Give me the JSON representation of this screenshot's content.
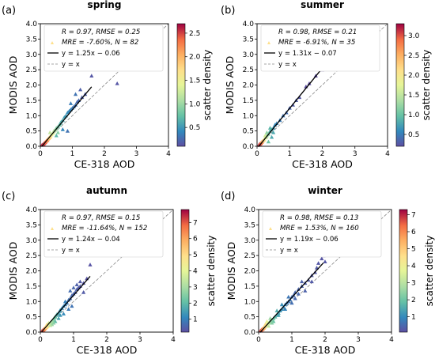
{
  "figure": {
    "ylabel": "MODIS AOD",
    "xlabel": "CE-318 AOD",
    "colorbar_label": "scatter density"
  },
  "chart_data": [
    {
      "type": "scatter",
      "panel": "(a)",
      "title": "spring",
      "xlabel": "CE-318 AOD",
      "ylabel": "MODIS AOD",
      "xlim": [
        0,
        4
      ],
      "ylim": [
        0,
        4
      ],
      "xticks": [
        "0",
        "1",
        "2",
        "3",
        "4"
      ],
      "yticks": [
        "0.0",
        "0.5",
        "1.0",
        "1.5",
        "2.0",
        "2.5",
        "3.0",
        "3.5",
        "4.0"
      ],
      "stats": {
        "line1": "R = 0.97, RMSE = 0.25",
        "line2": "MRE = -7.60%, N = 82"
      },
      "legend": {
        "fit": "y = 1.25x − 0.06",
        "identity": "y = x"
      },
      "fit": {
        "slope": 1.25,
        "intercept": -0.06,
        "x_range": [
          0.04,
          1.6
        ]
      },
      "colorbar": {
        "min": 0.1,
        "max": 2.7,
        "ticks": [
          "0.5",
          "1.0",
          "1.5",
          "2.0",
          "2.5"
        ],
        "tickvals": [
          0.5,
          1.0,
          1.5,
          2.0,
          2.5
        ]
      },
      "points": [
        [
          0.05,
          0.04,
          2.6
        ],
        [
          0.08,
          0.06,
          2.6
        ],
        [
          0.1,
          0.07,
          2.5
        ],
        [
          0.12,
          0.1,
          2.5
        ],
        [
          0.14,
          0.12,
          2.4
        ],
        [
          0.16,
          0.14,
          2.4
        ],
        [
          0.18,
          0.17,
          2.3
        ],
        [
          0.2,
          0.19,
          2.2
        ],
        [
          0.22,
          0.2,
          2.2
        ],
        [
          0.24,
          0.24,
          2.0
        ],
        [
          0.26,
          0.26,
          1.9
        ],
        [
          0.28,
          0.29,
          1.8
        ],
        [
          0.3,
          0.3,
          1.8
        ],
        [
          0.32,
          0.33,
          1.6
        ],
        [
          0.35,
          0.38,
          1.5
        ],
        [
          0.38,
          0.42,
          1.4
        ],
        [
          0.4,
          0.45,
          1.3
        ],
        [
          0.42,
          0.5,
          1.2
        ],
        [
          0.45,
          0.52,
          1.1
        ],
        [
          0.48,
          0.56,
          1.0
        ],
        [
          0.5,
          0.6,
          0.9
        ],
        [
          0.55,
          0.64,
          0.8
        ],
        [
          0.6,
          0.7,
          0.75
        ],
        [
          0.62,
          0.75,
          0.7
        ],
        [
          0.65,
          0.8,
          0.65
        ],
        [
          0.7,
          0.85,
          0.6
        ],
        [
          0.75,
          0.95,
          0.55
        ],
        [
          0.8,
          1.0,
          0.5
        ],
        [
          0.85,
          1.1,
          0.45
        ],
        [
          0.9,
          1.15,
          0.4
        ],
        [
          0.95,
          1.2,
          0.4
        ],
        [
          1.0,
          1.25,
          0.35
        ],
        [
          1.05,
          1.3,
          0.3
        ],
        [
          1.1,
          1.35,
          0.3
        ],
        [
          1.15,
          1.45,
          0.25
        ],
        [
          1.2,
          1.5,
          0.25
        ],
        [
          1.3,
          1.6,
          0.2
        ],
        [
          1.4,
          1.7,
          0.2
        ],
        [
          1.6,
          2.3,
          0.15
        ],
        [
          2.4,
          2.05,
          0.15
        ],
        [
          0.85,
          0.5,
          0.3
        ],
        [
          0.7,
          0.55,
          0.4
        ],
        [
          1.1,
          1.7,
          0.3
        ],
        [
          0.95,
          1.4,
          0.35
        ],
        [
          1.25,
          1.85,
          0.2
        ],
        [
          0.5,
          0.35,
          0.7
        ],
        [
          0.3,
          0.45,
          1.2
        ],
        [
          0.55,
          0.45,
          0.9
        ]
      ]
    },
    {
      "type": "scatter",
      "panel": "(b)",
      "title": "summer",
      "xlabel": "CE-318 AOD",
      "ylabel": "MODIS AOD",
      "xlim": [
        0,
        4
      ],
      "ylim": [
        0,
        4
      ],
      "xticks": [
        "0",
        "1",
        "2",
        "3",
        "4"
      ],
      "yticks": [
        "0.0",
        "0.5",
        "1.0",
        "1.5",
        "2.0",
        "2.5",
        "3.0",
        "3.5",
        "4.0"
      ],
      "stats": {
        "line1": "R = 0.98, RMSE = 0.21",
        "line2": "MRE = -6.91%, N = 35"
      },
      "legend": {
        "fit": "y = 1.31x − 0.07",
        "identity": "y = x"
      },
      "fit": {
        "slope": 1.31,
        "intercept": -0.07,
        "x_range": [
          0.04,
          2.0
        ]
      },
      "colorbar": {
        "min": 0.2,
        "max": 3.3,
        "ticks": [
          "0.5",
          "1.0",
          "1.5",
          "2.0",
          "2.5",
          "3.0"
        ],
        "tickvals": [
          0.5,
          1.0,
          1.5,
          2.0,
          2.5,
          3.0
        ]
      },
      "points": [
        [
          0.06,
          0.05,
          3.2
        ],
        [
          0.08,
          0.07,
          3.1
        ],
        [
          0.1,
          0.09,
          3.0
        ],
        [
          0.12,
          0.1,
          2.9
        ],
        [
          0.14,
          0.13,
          2.8
        ],
        [
          0.15,
          0.15,
          2.6
        ],
        [
          0.17,
          0.17,
          2.4
        ],
        [
          0.2,
          0.2,
          2.2
        ],
        [
          0.22,
          0.22,
          2.0
        ],
        [
          0.25,
          0.28,
          1.8
        ],
        [
          0.28,
          0.3,
          1.5
        ],
        [
          0.3,
          0.35,
          1.3
        ],
        [
          0.35,
          0.4,
          1.1
        ],
        [
          0.4,
          0.5,
          0.9
        ],
        [
          0.45,
          0.55,
          0.8
        ],
        [
          0.5,
          0.6,
          0.7
        ],
        [
          0.55,
          0.7,
          0.6
        ],
        [
          0.6,
          0.75,
          0.55
        ],
        [
          0.7,
          0.85,
          0.5
        ],
        [
          0.8,
          1.0,
          0.45
        ],
        [
          0.9,
          1.1,
          0.4
        ],
        [
          1.0,
          1.25,
          0.35
        ],
        [
          1.1,
          1.35,
          0.3
        ],
        [
          1.2,
          1.5,
          0.3
        ],
        [
          1.3,
          1.6,
          0.25
        ],
        [
          1.5,
          1.95,
          0.2
        ],
        [
          1.6,
          2.05,
          0.2
        ],
        [
          1.8,
          2.3,
          0.2
        ],
        [
          2.0,
          2.5,
          0.2
        ],
        [
          0.35,
          0.15,
          1.0
        ],
        [
          0.45,
          0.3,
          0.8
        ],
        [
          0.3,
          0.45,
          1.2
        ],
        [
          0.25,
          0.35,
          1.6
        ],
        [
          0.5,
          0.45,
          0.8
        ],
        [
          0.4,
          0.6,
          0.9
        ]
      ]
    },
    {
      "type": "scatter",
      "panel": "(c)",
      "title": "autumn",
      "xlabel": "CE-318 AOD",
      "ylabel": "MODIS AOD",
      "xlim": [
        0,
        4
      ],
      "ylim": [
        0,
        4
      ],
      "xticks": [
        "0",
        "1",
        "2",
        "3",
        "4"
      ],
      "yticks": [
        "0.0",
        "0.5",
        "1.0",
        "1.5",
        "2.0",
        "2.5",
        "3.0",
        "3.5",
        "4.0"
      ],
      "stats": {
        "line1": "R = 0.97, RMSE = 0.15",
        "line2": "MRE = -11.64%, N = 152"
      },
      "legend": {
        "fit": "y = 1.24x − 0.04",
        "identity": "y = x"
      },
      "fit": {
        "slope": 1.24,
        "intercept": -0.04,
        "x_range": [
          0.04,
          1.5
        ]
      },
      "colorbar": {
        "min": 0.2,
        "max": 7.8,
        "ticks": [
          "1",
          "2",
          "3",
          "4",
          "5",
          "6",
          "7"
        ],
        "tickvals": [
          1,
          2,
          3,
          4,
          5,
          6,
          7
        ]
      },
      "points": [
        [
          0.05,
          0.04,
          7.5
        ],
        [
          0.07,
          0.05,
          7.3
        ],
        [
          0.08,
          0.07,
          7.0
        ],
        [
          0.1,
          0.08,
          6.8
        ],
        [
          0.11,
          0.1,
          6.5
        ],
        [
          0.12,
          0.11,
          6.3
        ],
        [
          0.14,
          0.12,
          6.0
        ],
        [
          0.15,
          0.14,
          5.8
        ],
        [
          0.16,
          0.15,
          5.5
        ],
        [
          0.18,
          0.16,
          5.2
        ],
        [
          0.2,
          0.18,
          5.0
        ],
        [
          0.22,
          0.2,
          4.6
        ],
        [
          0.24,
          0.23,
          4.3
        ],
        [
          0.26,
          0.25,
          4.0
        ],
        [
          0.28,
          0.28,
          3.7
        ],
        [
          0.3,
          0.3,
          3.5
        ],
        [
          0.32,
          0.33,
          3.2
        ],
        [
          0.35,
          0.36,
          3.0
        ],
        [
          0.38,
          0.4,
          2.7
        ],
        [
          0.4,
          0.43,
          2.5
        ],
        [
          0.42,
          0.47,
          2.3
        ],
        [
          0.45,
          0.5,
          2.1
        ],
        [
          0.48,
          0.55,
          1.9
        ],
        [
          0.5,
          0.58,
          1.8
        ],
        [
          0.55,
          0.62,
          1.6
        ],
        [
          0.58,
          0.68,
          1.5
        ],
        [
          0.6,
          0.72,
          1.4
        ],
        [
          0.65,
          0.78,
          1.2
        ],
        [
          0.7,
          0.85,
          1.1
        ],
        [
          0.75,
          0.9,
          1.0
        ],
        [
          0.8,
          0.95,
          0.9
        ],
        [
          0.85,
          1.05,
          0.8
        ],
        [
          0.9,
          1.1,
          0.7
        ],
        [
          0.95,
          1.2,
          0.6
        ],
        [
          1.0,
          1.25,
          0.6
        ],
        [
          1.05,
          1.3,
          0.5
        ],
        [
          1.1,
          1.4,
          0.5
        ],
        [
          1.15,
          1.45,
          0.4
        ],
        [
          1.2,
          1.5,
          0.4
        ],
        [
          1.3,
          1.6,
          0.35
        ],
        [
          1.4,
          1.75,
          0.3
        ],
        [
          1.5,
          2.2,
          0.3
        ],
        [
          1.2,
          1.65,
          0.4
        ],
        [
          1.1,
          1.55,
          0.5
        ],
        [
          0.9,
          1.35,
          0.7
        ],
        [
          0.75,
          1.0,
          1.0
        ],
        [
          0.6,
          0.55,
          1.4
        ],
        [
          0.45,
          0.35,
          2.0
        ],
        [
          0.35,
          0.25,
          2.8
        ],
        [
          0.25,
          0.3,
          3.8
        ],
        [
          0.55,
          0.45,
          1.6
        ],
        [
          0.7,
          0.6,
          1.2
        ],
        [
          0.85,
          0.75,
          0.9
        ],
        [
          1.0,
          1.45,
          0.6
        ],
        [
          1.3,
          1.3,
          0.4
        ],
        [
          0.95,
          0.85,
          0.8
        ],
        [
          0.2,
          0.25,
          4.5
        ],
        [
          0.18,
          0.22,
          5.0
        ],
        [
          0.3,
          0.22,
          3.3
        ],
        [
          0.4,
          0.3,
          2.6
        ]
      ]
    },
    {
      "type": "scatter",
      "panel": "(d)",
      "title": "winter",
      "xlabel": "CE-318 AOD",
      "ylabel": "MODIS AOD",
      "xlim": [
        0,
        4
      ],
      "ylim": [
        0,
        4
      ],
      "xticks": [
        "0",
        "1",
        "2",
        "3",
        "4"
      ],
      "yticks": [
        "0.0",
        "0.5",
        "1.0",
        "1.5",
        "2.0",
        "2.5",
        "3.0",
        "3.5",
        "4.0"
      ],
      "stats": {
        "line1": "R = 0.98, RMSE = 0.13",
        "line2": "MRE = 1.53%, N = 160"
      },
      "legend": {
        "fit": "y = 1.19x − 0.06",
        "identity": "y = x"
      },
      "fit": {
        "slope": 1.19,
        "intercept": -0.06,
        "x_range": [
          0.04,
          1.95
        ]
      },
      "colorbar": {
        "min": 0.1,
        "max": 7.3,
        "ticks": [
          "1",
          "2",
          "3",
          "4",
          "5",
          "6",
          "7"
        ],
        "tickvals": [
          1,
          2,
          3,
          4,
          5,
          6,
          7
        ]
      },
      "points": [
        [
          0.05,
          0.04,
          7.0
        ],
        [
          0.07,
          0.05,
          6.8
        ],
        [
          0.08,
          0.07,
          6.5
        ],
        [
          0.1,
          0.09,
          6.3
        ],
        [
          0.12,
          0.1,
          6.0
        ],
        [
          0.13,
          0.12,
          5.7
        ],
        [
          0.15,
          0.13,
          5.5
        ],
        [
          0.16,
          0.15,
          5.2
        ],
        [
          0.18,
          0.17,
          5.0
        ],
        [
          0.2,
          0.19,
          4.6
        ],
        [
          0.22,
          0.21,
          4.3
        ],
        [
          0.24,
          0.24,
          4.0
        ],
        [
          0.26,
          0.26,
          3.7
        ],
        [
          0.28,
          0.28,
          3.4
        ],
        [
          0.3,
          0.3,
          3.1
        ],
        [
          0.33,
          0.33,
          2.8
        ],
        [
          0.36,
          0.36,
          2.6
        ],
        [
          0.4,
          0.4,
          2.3
        ],
        [
          0.45,
          0.45,
          2.0
        ],
        [
          0.5,
          0.5,
          1.8
        ],
        [
          0.55,
          0.55,
          1.6
        ],
        [
          0.6,
          0.62,
          1.4
        ],
        [
          0.65,
          0.7,
          1.2
        ],
        [
          0.7,
          0.75,
          1.1
        ],
        [
          0.75,
          0.82,
          1.0
        ],
        [
          0.8,
          0.9,
          0.9
        ],
        [
          0.85,
          0.95,
          0.8
        ],
        [
          0.9,
          1.0,
          0.7
        ],
        [
          0.95,
          1.05,
          0.7
        ],
        [
          1.0,
          1.15,
          0.6
        ],
        [
          1.05,
          1.2,
          0.5
        ],
        [
          1.1,
          1.3,
          0.5
        ],
        [
          1.2,
          1.4,
          0.45
        ],
        [
          1.3,
          1.5,
          0.4
        ],
        [
          1.4,
          1.6,
          0.35
        ],
        [
          1.5,
          1.7,
          0.3
        ],
        [
          1.6,
          1.85,
          0.3
        ],
        [
          1.7,
          1.95,
          0.25
        ],
        [
          1.8,
          2.25,
          0.25
        ],
        [
          1.9,
          2.4,
          0.2
        ],
        [
          1.95,
          2.5,
          0.2
        ],
        [
          2.0,
          2.3,
          0.25
        ],
        [
          1.75,
          2.1,
          0.3
        ],
        [
          1.6,
          1.65,
          0.3
        ],
        [
          1.4,
          1.35,
          0.4
        ],
        [
          1.2,
          1.25,
          0.5
        ],
        [
          1.0,
          0.95,
          0.6
        ],
        [
          0.8,
          0.75,
          0.9
        ],
        [
          0.6,
          0.55,
          1.4
        ],
        [
          0.45,
          0.35,
          2.0
        ],
        [
          0.35,
          0.45,
          2.6
        ],
        [
          0.55,
          0.7,
          1.6
        ],
        [
          0.3,
          0.2,
          3.1
        ],
        [
          0.25,
          0.35,
          3.8
        ],
        [
          0.7,
          0.9,
          1.1
        ],
        [
          0.9,
          1.15,
          0.7
        ],
        [
          1.1,
          1.1,
          0.5
        ],
        [
          1.3,
          1.65,
          0.4
        ],
        [
          0.4,
          0.3,
          2.3
        ],
        [
          0.2,
          0.25,
          4.6
        ]
      ]
    }
  ]
}
